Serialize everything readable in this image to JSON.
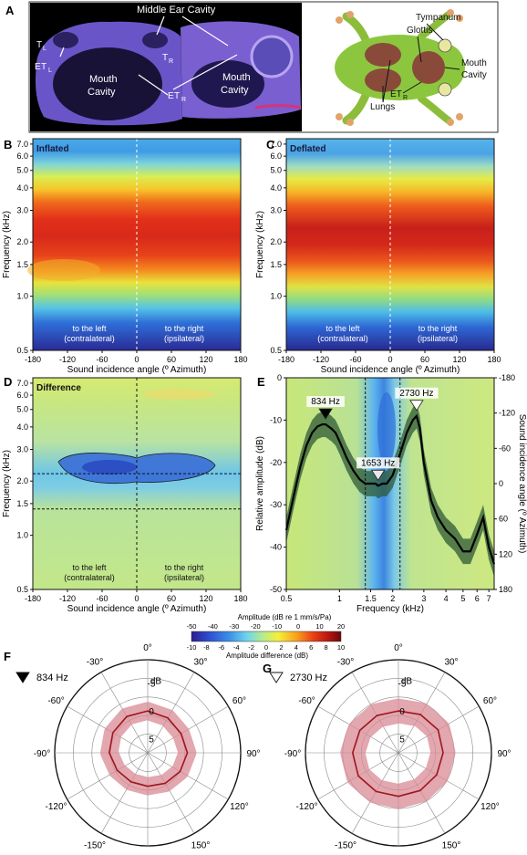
{
  "panel_letters": {
    "a": "A",
    "b": "B",
    "c": "C",
    "d": "D",
    "e": "E",
    "f": "F",
    "g": "G"
  },
  "panel_a": {
    "left_labels": [
      "Middle Ear Cavity",
      "T",
      "L",
      "T",
      "R",
      "E",
      "T",
      "L",
      "E",
      "T",
      "R",
      "Mouth",
      "Cavity",
      "Mouth",
      "Cavity"
    ],
    "frog_labels": {
      "tympanum": "Tympanum",
      "glottis": "Glottis",
      "mouth": "Mouth",
      "cavity": "Cavity",
      "lungs": "Lungs",
      "et": "ET",
      "et_sub": "R"
    }
  },
  "heatmaps": {
    "b": {
      "inset": "Inflated"
    },
    "c": {
      "inset": "Deflated"
    },
    "d": {
      "inset": "Difference"
    },
    "side_left": [
      "to the left",
      "(contralateral)"
    ],
    "side_right": [
      "to the right",
      "(ipsilateral)"
    ],
    "ylabel": "Frequency (kHz)",
    "xlabel": "Sound incidence angle (º Azimuth)"
  },
  "colorbar": {
    "top_label": "Amplitude (dB re 1 mm/s/Pa)",
    "bottom_label": "Amplitude difference (dB)",
    "top_ticks": [
      "-50",
      "-40",
      "-30",
      "-20",
      "-10",
      "0",
      "10",
      "20"
    ],
    "bottom_ticks": [
      "-10",
      "-8",
      "-6",
      "-4",
      "-2",
      "0",
      "2",
      "4",
      "6",
      "8",
      "10"
    ],
    "colors": [
      "#2a1e8e",
      "#2f4fd0",
      "#3a8fe6",
      "#6fd3f0",
      "#b7ec8a",
      "#f5ef3a",
      "#f9a31e",
      "#e93b16",
      "#b2150f",
      "#6a0a0a"
    ]
  },
  "chart_data": [
    {
      "type": "heatmap",
      "panel": "B",
      "title": "Inflated",
      "xlabel": "Sound incidence angle (º Azimuth)",
      "ylabel": "Frequency (kHz)",
      "x_ticks": [
        -180,
        -120,
        -60,
        0,
        60,
        120,
        180
      ],
      "y_ticks": [
        0.5,
        1.0,
        1.5,
        2.0,
        3.0,
        4.0,
        5.0,
        6.0,
        7.0
      ],
      "xlim": [
        -180,
        180
      ],
      "ylim": [
        0.5,
        7.5
      ],
      "yscale": "log"
    },
    {
      "type": "heatmap",
      "panel": "C",
      "title": "Deflated",
      "xlabel": "Sound incidence angle (º Azimuth)",
      "ylabel": "Frequency (kHz)",
      "x_ticks": [
        -180,
        -120,
        -60,
        0,
        60,
        120,
        180
      ],
      "y_ticks": [
        0.5,
        1.0,
        1.5,
        2.0,
        3.0,
        4.0,
        5.0,
        6.0,
        7.0
      ],
      "xlim": [
        -180,
        180
      ],
      "ylim": [
        0.5,
        7.5
      ],
      "yscale": "log"
    },
    {
      "type": "heatmap",
      "panel": "D",
      "title": "Difference",
      "xlabel": "Sound incidence angle (º Azimuth)",
      "ylabel": "Frequency (kHz)",
      "x_ticks": [
        -180,
        -120,
        -60,
        0,
        60,
        120,
        180
      ],
      "y_ticks": [
        0.5,
        1.0,
        1.5,
        2.0,
        3.0,
        4.0,
        5.0,
        6.0,
        7.0
      ],
      "xlim": [
        -180,
        180
      ],
      "ylim": [
        0.5,
        7.5
      ],
      "yscale": "log",
      "dashed_lines_khz": [
        1.4,
        2.2
      ]
    },
    {
      "type": "line",
      "panel": "E",
      "xlabel": "Frequency (kHz)",
      "ylabel": "Relative amplitude (dB)",
      "y2label": "Sound incidence angle (º Azimuth)",
      "xscale": "log",
      "xlim": [
        0.5,
        7.5
      ],
      "ylim": [
        -50,
        0
      ],
      "y2lim": [
        180,
        -180
      ],
      "x_ticks": [
        "0.5",
        "1",
        "1.5",
        "2",
        "3",
        "4",
        "5",
        "6",
        "7"
      ],
      "x_tick_values": [
        0.5,
        1,
        1.5,
        2,
        3,
        4,
        5,
        6,
        7
      ],
      "y_ticks": [
        0,
        -10,
        -20,
        -30,
        -40,
        -50
      ],
      "y2_ticks": [
        -180,
        -120,
        -60,
        0,
        60,
        120,
        180
      ],
      "dashed_lines_khz": [
        1.4,
        2.2
      ],
      "series": [
        {
          "x": [
            0.5,
            0.55,
            0.6,
            0.65,
            0.7,
            0.75,
            0.8,
            0.834,
            0.9,
            0.95,
            1.0,
            1.1,
            1.2,
            1.3,
            1.4,
            1.5,
            1.6,
            1.653,
            1.75,
            1.85,
            2.0,
            2.2,
            2.4,
            2.6,
            2.73,
            2.85,
            3.0,
            3.3,
            3.6,
            4.0,
            4.5,
            5.0,
            5.5,
            6.0,
            6.5,
            7.0,
            7.5
          ],
          "y": [
            -36,
            -28,
            -21,
            -16,
            -13,
            -11.5,
            -11,
            -11,
            -12,
            -13,
            -15,
            -19,
            -22,
            -24,
            -25,
            -25,
            -25,
            -25.5,
            -25,
            -25,
            -23,
            -18,
            -13,
            -10,
            -9,
            -12,
            -20,
            -29,
            -33,
            -36,
            -38,
            -41,
            -41,
            -37,
            -33,
            -40,
            -44
          ]
        }
      ],
      "band_half_width_db": 3,
      "markers": [
        {
          "label": "834 Hz",
          "x": 0.834,
          "fill": "black"
        },
        {
          "label": "1653 Hz",
          "x": 1.653,
          "fill": "#e8e8e8"
        },
        {
          "label": "2730 Hz",
          "x": 2.73,
          "fill": "white"
        }
      ]
    },
    {
      "type": "polar",
      "panel": "F",
      "legend": "834 Hz",
      "legend_marker": "black",
      "angle_labels": [
        "0°",
        "30°",
        "60°",
        "90°",
        "120°",
        "150°",
        "±180°",
        "-150°",
        "-120°",
        "-90°",
        "-60°",
        "-30°"
      ],
      "r_unit": "dB",
      "r_ticks": [
        "-5",
        "0",
        "5"
      ],
      "theta_deg": [
        0,
        30,
        60,
        90,
        120,
        150,
        180,
        -150,
        -120,
        -90,
        -60,
        -30
      ],
      "r_db": [
        0,
        0.3,
        0.6,
        0.4,
        0.8,
        1.2,
        1.5,
        1.5,
        1.2,
        0.6,
        0.3,
        0
      ],
      "band_db": 1.6
    },
    {
      "type": "polar",
      "panel": "G",
      "legend": "2730 Hz",
      "legend_marker": "white",
      "angle_labels": [
        "0°",
        "30°",
        "60°",
        "90°",
        "120°",
        "150°",
        "±180°",
        "-150°",
        "-120°",
        "-90°",
        "-60°",
        "-30°"
      ],
      "r_unit": "dB",
      "r_ticks": [
        "-5",
        "0",
        "5"
      ],
      "theta_deg": [
        0,
        30,
        60,
        90,
        120,
        150,
        180,
        -150,
        -120,
        -90,
        -60,
        -30
      ],
      "r_db": [
        0,
        -0.4,
        -0.7,
        -0.5,
        -0.4,
        -0.3,
        -0.3,
        -0.5,
        -0.8,
        -0.7,
        -0.5,
        -0.2
      ],
      "band_db": 2.2
    }
  ]
}
